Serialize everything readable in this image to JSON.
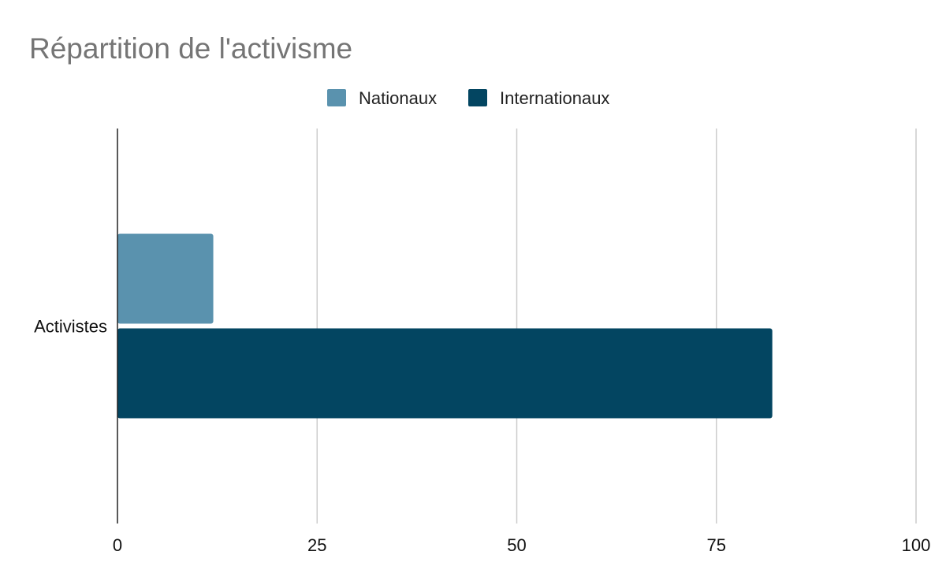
{
  "chart_data": {
    "type": "bar",
    "orientation": "horizontal",
    "title": "Répartition de l'activisme",
    "xlabel": "",
    "ylabel": "",
    "categories": [
      "Activistes"
    ],
    "series": [
      {
        "name": "Nationaux",
        "values": [
          12
        ],
        "color": "#5a92ae"
      },
      {
        "name": "Internationaux",
        "values": [
          82
        ],
        "color": "#034561"
      }
    ],
    "xlim": [
      0,
      100
    ],
    "x_ticks": [
      0,
      25,
      50,
      75,
      100
    ],
    "grid": true,
    "legend_position": "top"
  }
}
